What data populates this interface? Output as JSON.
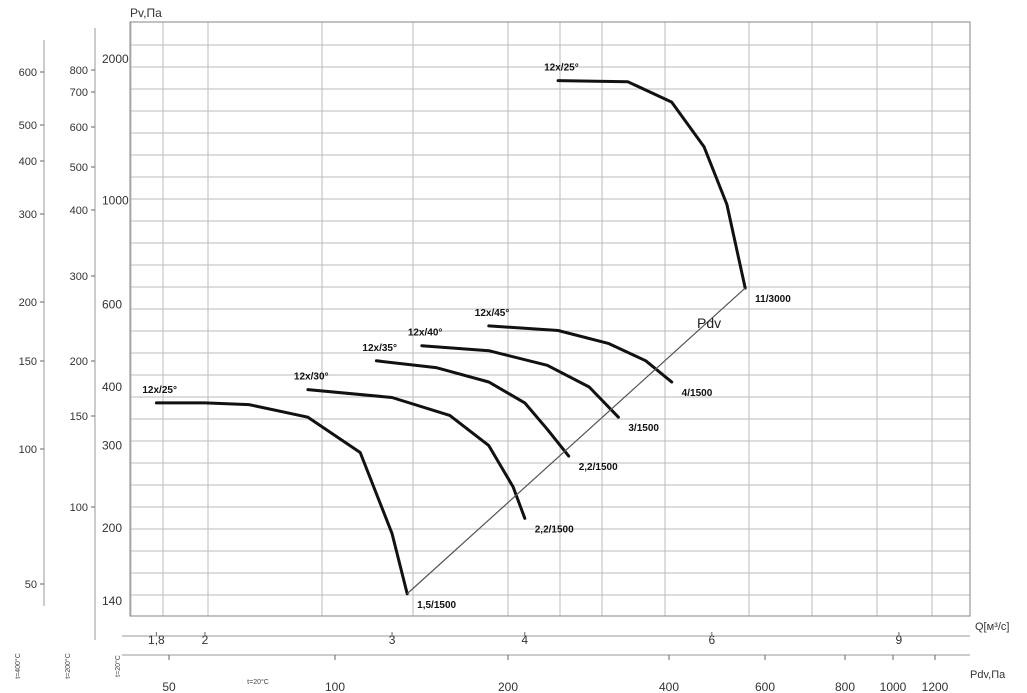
{
  "chart_data": {
    "type": "line",
    "title": "",
    "y_title": "Pv,Па",
    "x_title": "Q[м³/с]",
    "pd_title": "Pdv,Па",
    "line_label": "Pdv",
    "x_ticks": [
      "1,8",
      "2",
      "3",
      "4",
      "6",
      "9"
    ],
    "pd_ticks": [
      "50",
      "100",
      "200",
      "400",
      "600",
      "800",
      "1000",
      "1200"
    ],
    "y_ticks_main": [
      "2000",
      "1000",
      "600",
      "400",
      "300",
      "200",
      "140"
    ],
    "y_ticks_c2": [
      "800",
      "700",
      "600",
      "500",
      "400",
      "300",
      "200",
      "150",
      "100"
    ],
    "y_ticks_c1": [
      "600",
      "500",
      "400",
      "300",
      "200",
      "150",
      "100",
      "50"
    ],
    "temp_labels": [
      "t=400°C",
      "t=200°C",
      "t=20°C",
      "t=20°C"
    ],
    "xlim": [
      1.7,
      10.5
    ],
    "ylim": [
      130,
      2400
    ],
    "log_x": true,
    "log_y": true,
    "grid": true,
    "series": [
      {
        "label": "12x/25°",
        "end_label": "1,5/1500",
        "points": [
          [
            1.8,
            370
          ],
          [
            2.0,
            370
          ],
          [
            2.2,
            367
          ],
          [
            2.5,
            345
          ],
          [
            2.8,
            290
          ],
          [
            3.0,
            195
          ],
          [
            3.1,
            145
          ]
        ]
      },
      {
        "label": "12x/30°",
        "end_label": "2,2/1500",
        "points": [
          [
            2.5,
            395
          ],
          [
            3.0,
            380
          ],
          [
            3.4,
            348
          ],
          [
            3.7,
            300
          ],
          [
            3.9,
            245
          ],
          [
            4.0,
            210
          ]
        ]
      },
      {
        "label": "12x/35°",
        "end_label": "2,2/1500",
        "points": [
          [
            2.9,
            455
          ],
          [
            3.3,
            440
          ],
          [
            3.7,
            410
          ],
          [
            4.0,
            370
          ],
          [
            4.2,
            325
          ],
          [
            4.4,
            285
          ]
        ]
      },
      {
        "label": "12x/40°",
        "end_label": "3/1500",
        "points": [
          [
            3.2,
            490
          ],
          [
            3.7,
            478
          ],
          [
            4.2,
            445
          ],
          [
            4.6,
            400
          ],
          [
            4.9,
            345
          ]
        ]
      },
      {
        "label": "12x/45°",
        "end_label": "4/1500",
        "points": [
          [
            3.7,
            540
          ],
          [
            4.3,
            528
          ],
          [
            4.8,
            495
          ],
          [
            5.2,
            455
          ],
          [
            5.5,
            410
          ]
        ]
      },
      {
        "label": "12x/25°",
        "end_label": "11/3000",
        "points": [
          [
            4.3,
            1800
          ],
          [
            5.0,
            1790
          ],
          [
            5.5,
            1620
          ],
          [
            5.9,
            1300
          ],
          [
            6.2,
            980
          ],
          [
            6.45,
            650
          ]
        ]
      }
    ],
    "pdv_line": [
      [
        3.1,
        145
      ],
      [
        6.45,
        650
      ]
    ],
    "colors": {
      "curve": "#111111",
      "grid": "#bbbbbb",
      "frame": "#999999",
      "pdv_line": "#555555"
    }
  }
}
